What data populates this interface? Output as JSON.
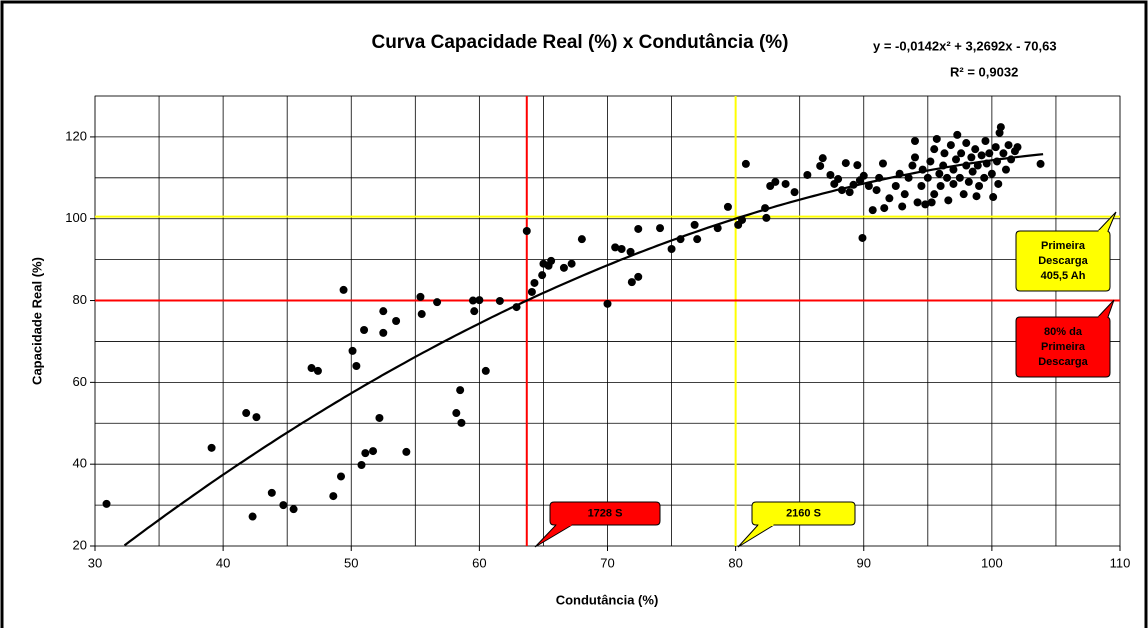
{
  "chart_data": {
    "type": "scatter",
    "title": "Curva Capacidade Real (%) x Condutância (%)",
    "x_label": "Condutância (%)",
    "y_label": "Capacidade Real (%)",
    "color": "#000000",
    "x": [
      30.9,
      39.1,
      41.8,
      42.6,
      42.3,
      43.8,
      44.7,
      45.5,
      46.9,
      47.4,
      49.4,
      49.2,
      48.6,
      50.1,
      50.4,
      51.0,
      50.8,
      51.1,
      51.7,
      52.2,
      52.5,
      52.5,
      53.5,
      54.3,
      55.4,
      55.5,
      56.7,
      58.2,
      58.5,
      58.6,
      59.5,
      59.6,
      60.0,
      60.5,
      61.6,
      62.9,
      63.7,
      64.1,
      64.3,
      64.9,
      65.0,
      65.4,
      65.6,
      66.6,
      67.2,
      68.0,
      70.0,
      70.6,
      71.1,
      71.8,
      71.9,
      72.4,
      72.4,
      74.1,
      75.0,
      75.7,
      76.8,
      77.0,
      78.6,
      79.4,
      80.2,
      80.5,
      80.8,
      82.3,
      82.4,
      82.7,
      83.1,
      83.9,
      84.6,
      85.6,
      86.6,
      86.8,
      87.4,
      88.0,
      88.6,
      89.5,
      89.9,
      90.7,
      91.6,
      92.5,
      92.8,
      93.2,
      93.5,
      93.8,
      94.0,
      94.0,
      94.2,
      94.5,
      94.6,
      94.8,
      95.0,
      95.2,
      95.5,
      95.5,
      95.7,
      95.9,
      96.0,
      96.2,
      96.3,
      96.5,
      96.6,
      96.8,
      97.0,
      97.0,
      97.2,
      97.3,
      97.5,
      97.6,
      97.8,
      98.0,
      98.0,
      98.2,
      98.4,
      98.5,
      98.7,
      98.9,
      99.0,
      99.2,
      99.4,
      99.5,
      99.6,
      99.8,
      100.0,
      100.1,
      100.3,
      100.4,
      100.5,
      100.6,
      100.7,
      100.9,
      101.1,
      101.3,
      101.5,
      101.8,
      102.0,
      91.2,
      91.5,
      92.0,
      93.0,
      95.3,
      98.8,
      88.9,
      89.2,
      90.0,
      90.4,
      91.0,
      89.7,
      88.3,
      87.7,
      103.8
    ],
    "y": [
      30.3,
      44,
      52.5,
      51.5,
      27.2,
      33,
      30,
      29,
      63.5,
      62.8,
      82.6,
      37,
      32.2,
      67.7,
      64,
      72.8,
      39.8,
      42.7,
      43.2,
      51.3,
      77.4,
      72.1,
      75,
      43,
      80.9,
      76.7,
      79.6,
      52.5,
      58.1,
      50.1,
      80,
      77.4,
      80.1,
      62.8,
      79.9,
      78.4,
      97,
      82.1,
      84.3,
      86.2,
      89,
      88.5,
      89.7,
      88,
      89,
      95,
      79.2,
      93,
      92.6,
      91.9,
      84.5,
      85.8,
      97.5,
      97.7,
      92.6,
      95,
      98.5,
      95,
      97.7,
      102.9,
      98.5,
      99.7,
      113.4,
      102.6,
      100.2,
      108,
      109,
      108.5,
      106.5,
      110.7,
      112.9,
      114.8,
      110.7,
      109.7,
      113.6,
      113.1,
      95.3,
      102.1,
      102.6,
      108,
      111,
      106,
      110,
      113,
      115,
      119,
      104,
      108,
      112,
      103.5,
      110,
      114,
      117,
      106,
      119.5,
      111,
      108,
      113,
      116,
      110,
      104.5,
      118,
      112,
      108.5,
      114.5,
      120.5,
      110,
      116,
      106,
      113,
      118.5,
      109,
      115,
      111.5,
      117,
      113,
      108,
      115.5,
      110,
      119,
      113.5,
      116,
      111,
      105.3,
      117.5,
      114,
      108.5,
      121,
      122.4,
      116,
      112,
      118,
      114.5,
      116.5,
      117.5,
      110,
      113.5,
      105,
      103,
      104,
      105.5,
      106.5,
      108.3,
      110.5,
      108,
      107,
      109.4,
      107,
      108.5,
      113.4
    ],
    "xlim": [
      30,
      110
    ],
    "xticks": [
      30,
      40,
      50,
      60,
      70,
      80,
      90,
      100,
      110
    ],
    "minor_xticks": [
      35,
      45,
      55,
      65,
      75,
      85,
      95,
      105
    ],
    "ylim": [
      20,
      130
    ],
    "yticks": [
      20,
      40,
      60,
      80,
      100,
      120
    ],
    "minor_yticks": [
      30,
      50,
      70,
      90,
      110,
      130
    ],
    "grid": true,
    "trendline": {
      "equation": "y = -0,0142x² + 3,2692x - 70,63",
      "r2": "R² = 0,9032",
      "coefficients": [
        -0.0142,
        3.2692,
        -70.63
      ],
      "xlim": [
        32.3,
        104
      ]
    },
    "reference_lines": [
      {
        "axis": "x",
        "value": 63.7,
        "color": "#ff0000"
      },
      {
        "axis": "x",
        "value": 80,
        "color": "#ffff00"
      },
      {
        "axis": "y",
        "value": 80,
        "color": "#ff0000"
      },
      {
        "axis": "y",
        "value": 100.5,
        "color": "#ffff00"
      }
    ],
    "annotations": [
      {
        "lines": [
          "Primeira",
          "Descarga",
          "405,5 Ah"
        ],
        "color": "#ffff00"
      },
      {
        "lines": [
          "80% da",
          "Primeira",
          "Descarga"
        ],
        "color": "#ff0000"
      },
      {
        "lines": [
          "1728 S"
        ],
        "color": "#ff0000"
      },
      {
        "lines": [
          "2160 S"
        ],
        "color": "#ffff00"
      }
    ]
  }
}
